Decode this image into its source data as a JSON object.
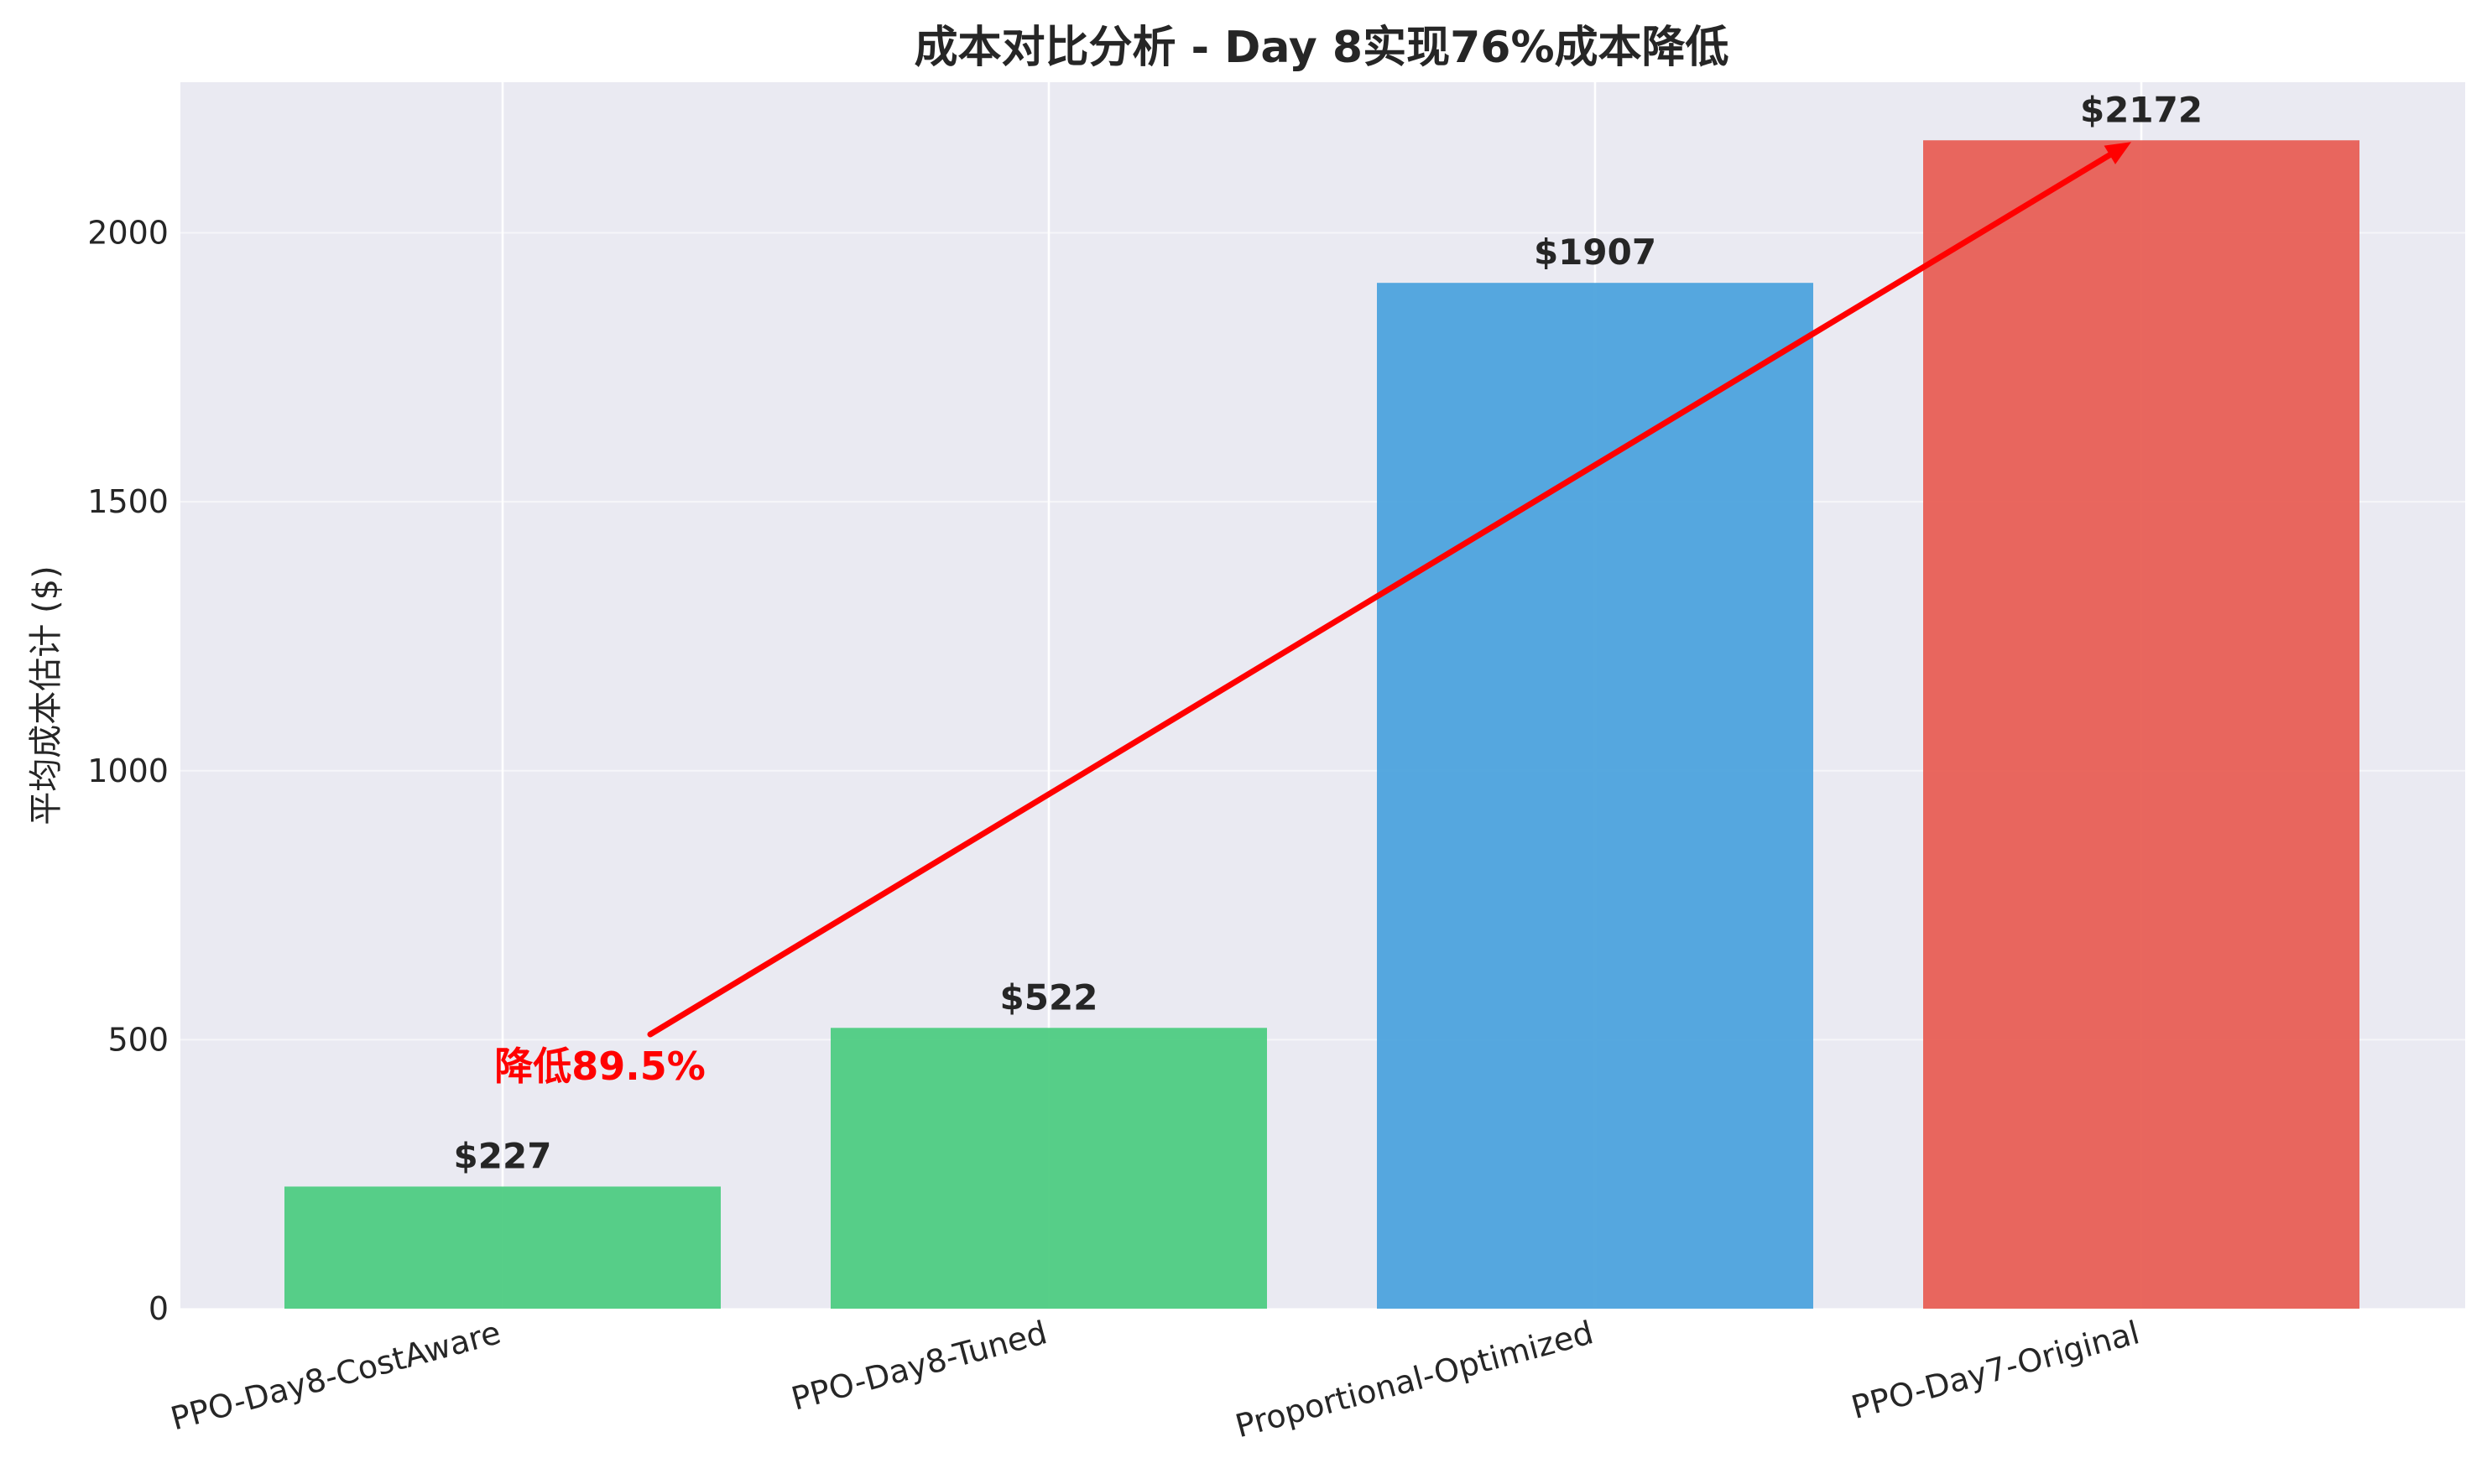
{
  "chart_data": {
    "type": "bar",
    "title": "成本对比分析 - Day 8实现76%成本降低",
    "xlabel": "",
    "ylabel": "平均成本估计 ($)",
    "ylim": [
      0,
      2280
    ],
    "yticks": [
      0,
      500,
      1000,
      1500,
      2000
    ],
    "grid": true,
    "categories": [
      "PPO-Day8-CostAware",
      "PPO-Day8-Tuned",
      "Proportional-Optimized",
      "PPO-Day7-Original"
    ],
    "values": [
      227,
      522,
      1907,
      2172
    ],
    "value_labels": [
      "$227",
      "$522",
      "$1907",
      "$2172"
    ],
    "colors": [
      "#4ecc82",
      "#4ecc82",
      "#4da3dd",
      "#e85f55"
    ],
    "background_color": "#eaeaf2",
    "annotation": {
      "text": "降低89.5%",
      "color": "#ff0000",
      "from_category_index": 0,
      "from_value": 510,
      "to_category_index": 3,
      "to_value": 2172
    }
  }
}
